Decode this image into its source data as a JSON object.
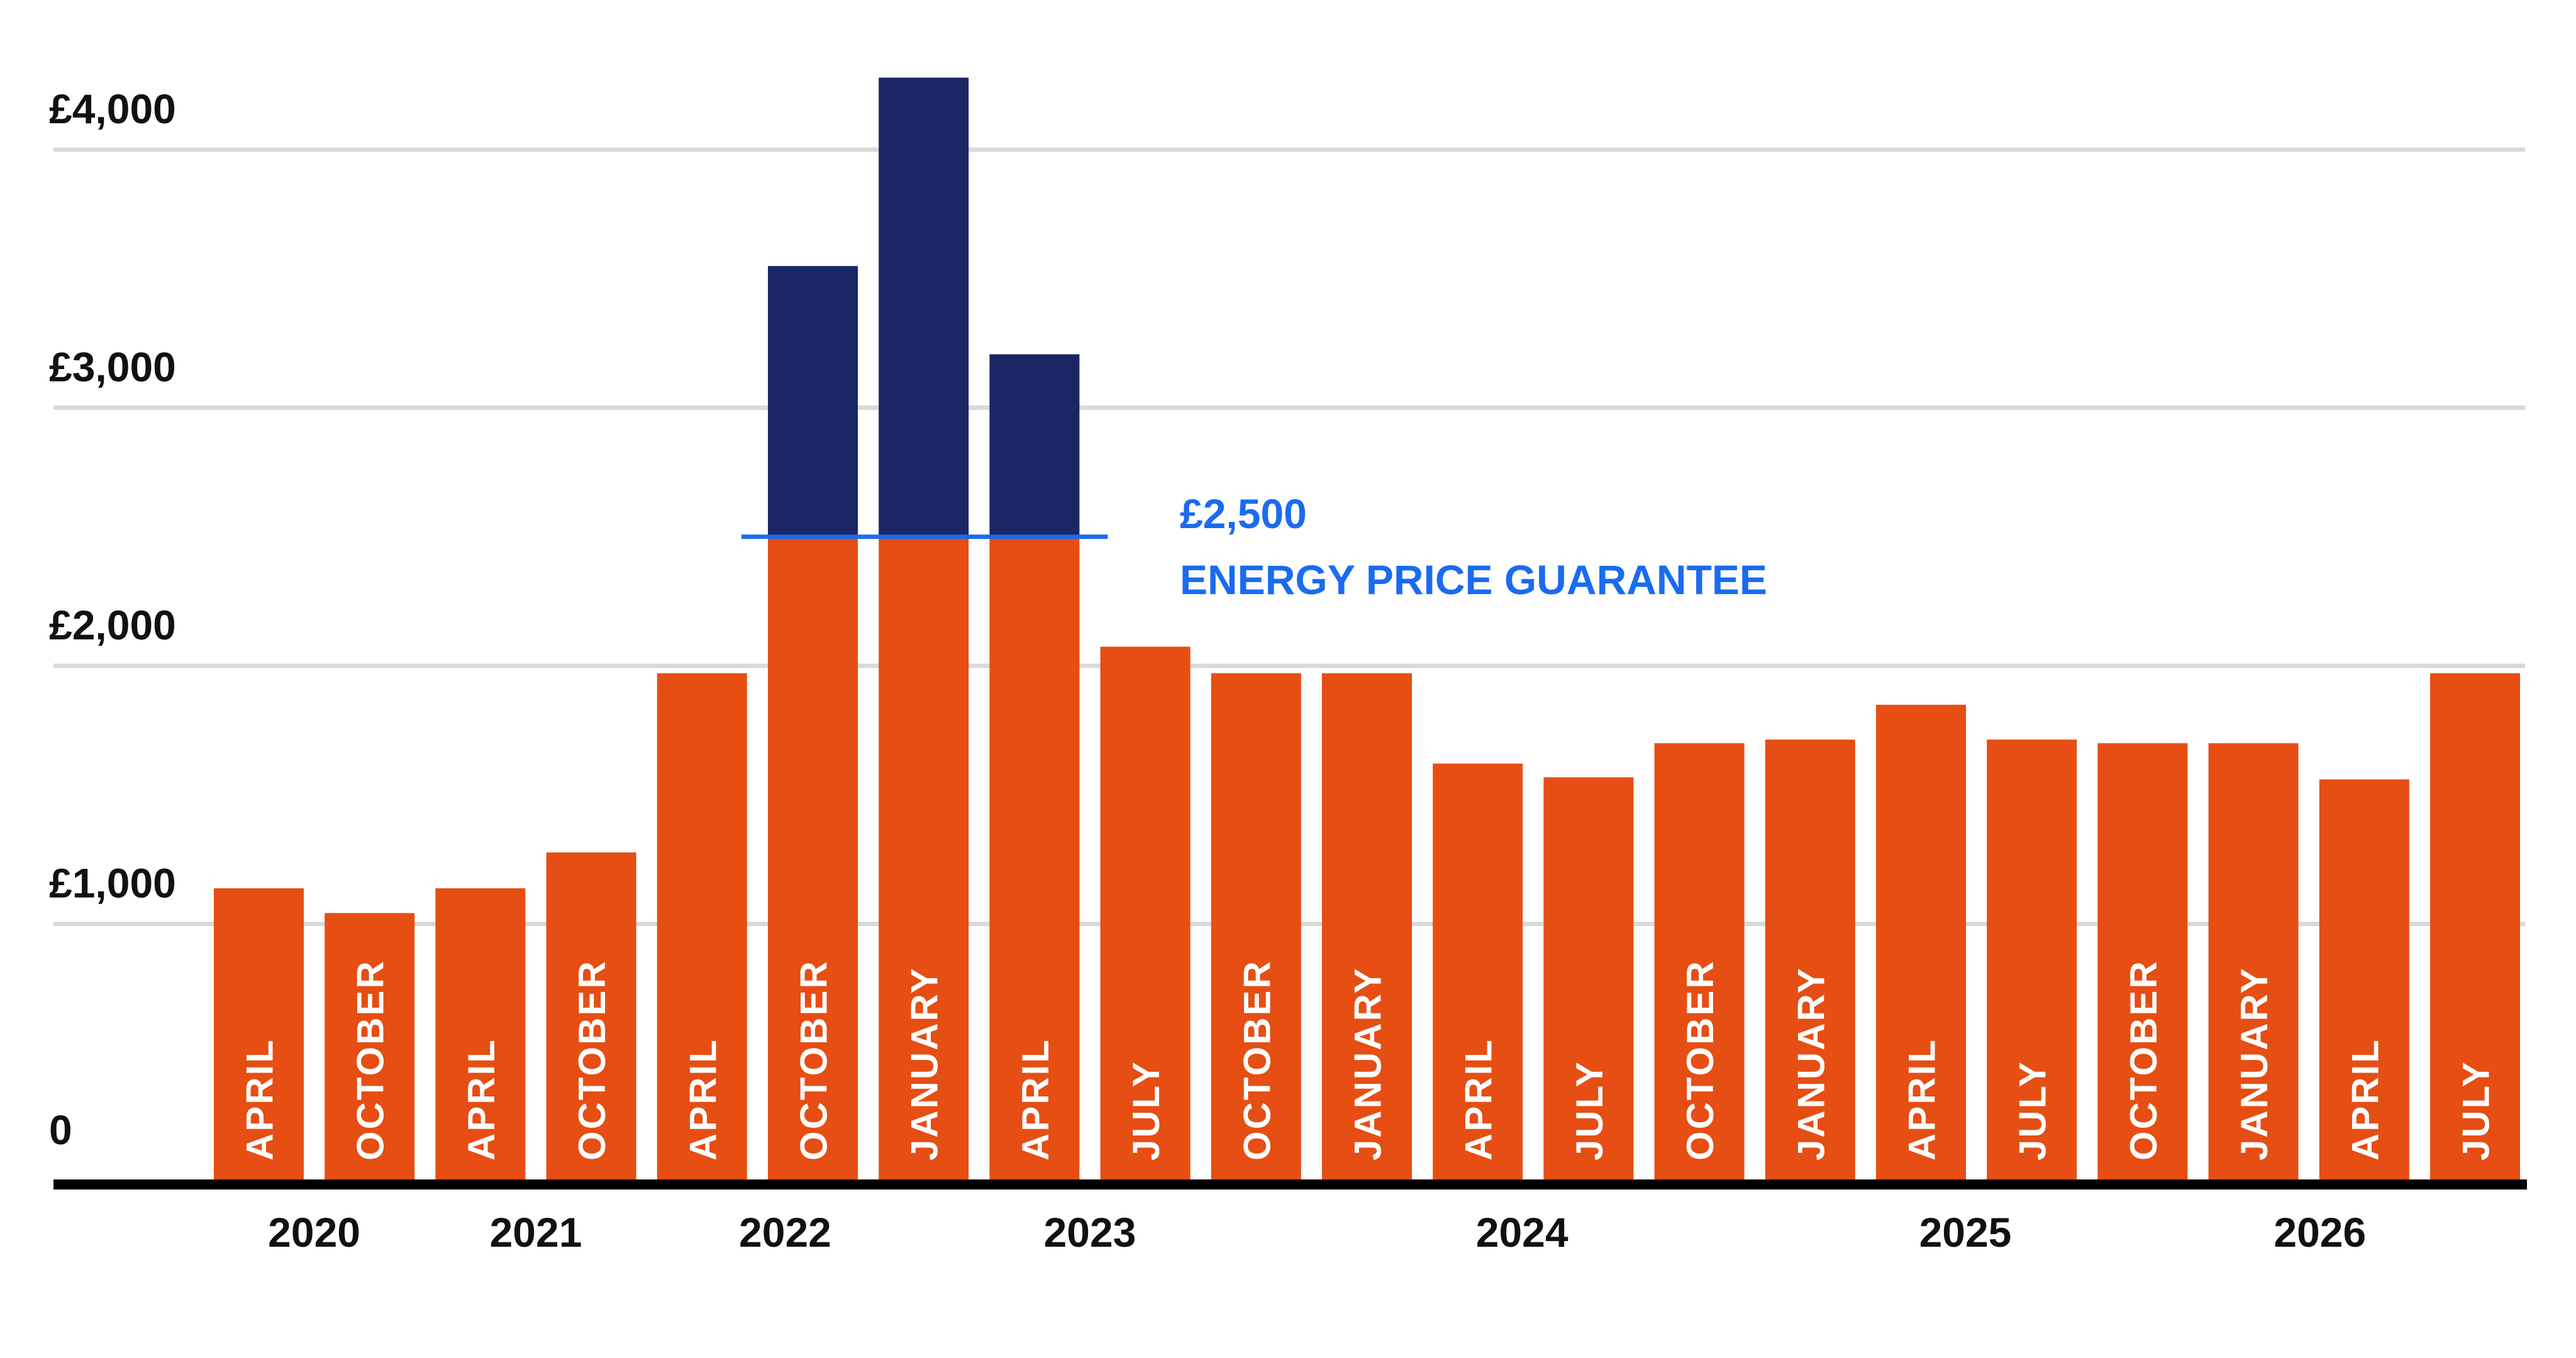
{
  "chart_data": {
    "type": "bar",
    "title": "",
    "xlabel": "",
    "ylabel": "",
    "ylim": [
      0,
      4250
    ],
    "y_ticks": [
      {
        "value": 0,
        "label": "0"
      },
      {
        "value": 1000,
        "label": "£1,000"
      },
      {
        "value": 2000,
        "label": "£2,000"
      },
      {
        "value": 3000,
        "label": "£3,000"
      },
      {
        "value": 4000,
        "label": "£4,000"
      }
    ],
    "grid": true,
    "categories": [
      "APRIL",
      "OCTOBER",
      "APRIL",
      "OCTOBER",
      "APRIL",
      "OCTOBER",
      "JANUARY",
      "APRIL",
      "JULY",
      "OCTOBER",
      "JANUARY",
      "APRIL",
      "JULY",
      "OCTOBER",
      "JANUARY",
      "APRIL",
      "JULY",
      "OCTOBER",
      "JANUARY",
      "APRIL",
      "JULY"
    ],
    "series": [
      {
        "values": [
          1138,
          1042,
          1138,
          1277,
          1971,
          2500,
          2500,
          2500,
          2074,
          1971,
          1971,
          1621,
          1568,
          1700,
          1714,
          1849,
          1714,
          1700,
          1700,
          1560,
          1971
        ]
      },
      {
        "values": [
          0,
          0,
          0,
          0,
          0,
          1049,
          1779,
          707,
          0,
          0,
          0,
          0,
          0,
          0,
          0,
          0,
          0,
          0,
          0,
          0,
          0
        ]
      }
    ],
    "year_labels": [
      {
        "label": "2020",
        "at": 0.5
      },
      {
        "label": "2021",
        "at": 2.5
      },
      {
        "label": "2022",
        "at": 4.75
      },
      {
        "label": "2023",
        "at": 7.5
      },
      {
        "label": "2024",
        "at": 11.4
      },
      {
        "label": "2025",
        "at": 15.4
      },
      {
        "label": "2026",
        "at": 18.6
      }
    ],
    "reference_line": {
      "value": 2500,
      "from_category": 5,
      "to_category": 7,
      "label_value": "£2,500",
      "label_text": "ENERGY PRICE GUARANTEE"
    },
    "colors": {
      "base": "#E64E13",
      "excess": "#1B2764",
      "guarantee": "#1A6BF0",
      "axis": "#000000",
      "grid": "#D9D9D9",
      "text": "#111111",
      "bar_label": "#FFFFFF"
    }
  }
}
